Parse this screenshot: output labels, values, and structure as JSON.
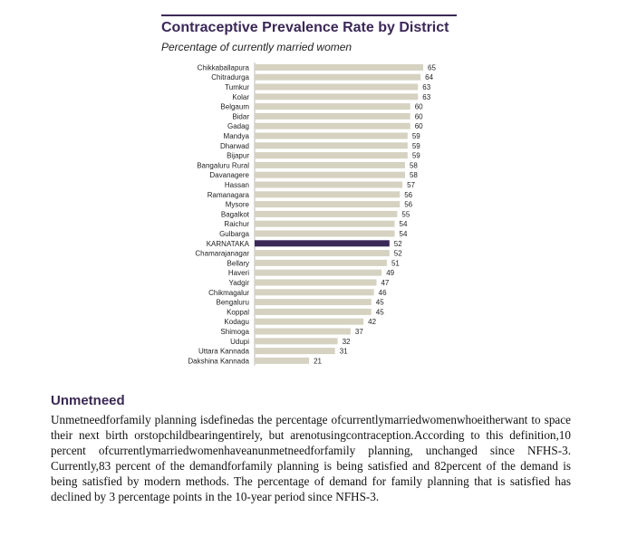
{
  "chart_data": {
    "type": "bar",
    "orientation": "horizontal",
    "title": "Contraceptive Prevalence Rate by District",
    "subtitle": "Percentage of currently married women",
    "categories": [
      "Chikkaballapura",
      "Chitradurga",
      "Tumkur",
      "Kolar",
      "Belgaum",
      "Bidar",
      "Gadag",
      "Mandya",
      "Dharwad",
      "Bijapur",
      "Bangaluru Rural",
      "Davanagere",
      "Hassan",
      "Ramanagara",
      "Mysore",
      "Bagalkot",
      "Raichur",
      "Gulbarga",
      "KARNATAKA",
      "Chamarajanagar",
      "Bellary",
      "Haveri",
      "Yadgir",
      "Chikmagalur",
      "Bengaluru",
      "Koppal",
      "Kodagu",
      "Shimoga",
      "Udupi",
      "Uttara Kannada",
      "Dakshina Kannada"
    ],
    "values": [
      65,
      64,
      63,
      63,
      60,
      60,
      60,
      59,
      59,
      59,
      58,
      58,
      57,
      56,
      56,
      55,
      54,
      54,
      52,
      52,
      51,
      49,
      47,
      46,
      45,
      45,
      42,
      37,
      32,
      31,
      21
    ],
    "highlight": "KARNATAKA",
    "xlim": [
      0,
      65
    ],
    "grid": false,
    "colors": {
      "bar": "#d6d2c1",
      "highlight": "#3b2857",
      "axis": "#bbbbbb"
    }
  },
  "text_section": {
    "heading": "Unmetneed",
    "body": "Unmetneedforfamily planning isdefinedas the percentage ofcurrentlymarriedwomenwhoeitherwant to space their next birth orstopchildbearingentirely, but arenotusingcontraception.According to this definition,10 percent ofcurrentlymarriedwomenhaveanunmetneedforfamily planning, unchanged since NFHS-3. Currently,83 percent of the demandforfamily planning is being satisfied and 82percent of the demand is being satisfied by modern methods. The percentage of demand for family planning that is satisfied has declined by 3 percentage points in the 10-year period since NFHS-3."
  }
}
